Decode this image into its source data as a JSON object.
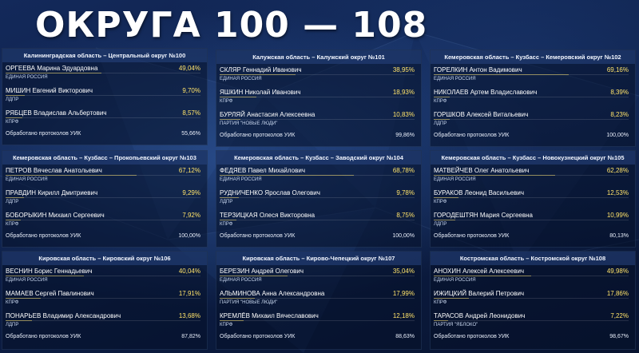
{
  "title": "ОКРУГА 100 — 108",
  "colors": {
    "percent": "#ffe36a",
    "background": "#0b1a3c",
    "header": "#284682"
  },
  "districts": [
    {
      "header": "Калининградская область – Центральный округ №100",
      "candidates": [
        {
          "name": "ОРГЕЕВА Марина Эдуардовна",
          "percent": "49,04%",
          "party": "ЕДИНАЯ РОССИЯ",
          "share": 0.4904
        },
        {
          "name": "МИШИН Евгений Викторович",
          "percent": "9,70%",
          "party": "ЛДПР",
          "share": 0.097
        },
        {
          "name": "РЯБЦЕВ Владислав Альбертович",
          "percent": "8,57%",
          "party": "КПРФ",
          "share": 0.0857
        }
      ],
      "processed_label": "Обработано протоколов УИК",
      "processed_value": "55,66%"
    },
    {
      "header": "Калужская область – Калужский округ №101",
      "candidates": [
        {
          "name": "СКЛЯР Геннадий Иванович",
          "percent": "38,95%",
          "party": "ЕДИНАЯ РОССИЯ",
          "share": 0.3895
        },
        {
          "name": "ЯШКИН Николай Иванович",
          "percent": "18,93%",
          "party": "КПРФ",
          "share": 0.1893
        },
        {
          "name": "БУРЛЯЙ Анастасия Алексеевна",
          "percent": "10,83%",
          "party": "ПАРТИЯ \"НОВЫЕ ЛЮДИ\"",
          "share": 0.1083
        }
      ],
      "processed_label": "Обработано протоколов УИК",
      "processed_value": "99,86%"
    },
    {
      "header": "Кемеровская область – Кузбасс – Кемеровский округ №102",
      "candidates": [
        {
          "name": "ГОРЕЛКИН Антон Вадимович",
          "percent": "69,16%",
          "party": "ЕДИНАЯ РОССИЯ",
          "share": 0.6916
        },
        {
          "name": "НИКОЛАЕВ Артем Владиславович",
          "percent": "8,39%",
          "party": "КПРФ",
          "share": 0.0839
        },
        {
          "name": "ГОРШКОВ Алексей Витальевич",
          "percent": "8,23%",
          "party": "ЛДПР",
          "share": 0.0823
        }
      ],
      "processed_label": "Обработано протоколов УИК",
      "processed_value": "100,00%"
    },
    {
      "header": "Кемеровская область – Кузбасс – Прокопьевский округ №103",
      "candidates": [
        {
          "name": "ПЕТРОВ Вячеслав Анатольевич",
          "percent": "67,12%",
          "party": "ЕДИНАЯ РОССИЯ",
          "share": 0.6712
        },
        {
          "name": "ПРАВДИН Кирилл Дмитриевич",
          "percent": "9,29%",
          "party": "ЛДПР",
          "share": 0.0929
        },
        {
          "name": "БОБОРЫКИН Михаил Сергеевич",
          "percent": "7,92%",
          "party": "КПРФ",
          "share": 0.0792
        }
      ],
      "processed_label": "Обработано протоколов УИК",
      "processed_value": "100,00%"
    },
    {
      "header": "Кемеровская область – Кузбасс – Заводский округ №104",
      "candidates": [
        {
          "name": "ФЕДЯЕВ Павел Михайлович",
          "percent": "68,78%",
          "party": "ЕДИНАЯ РОССИЯ",
          "share": 0.6878
        },
        {
          "name": "РУДНИЧЕНКО Ярослав Олегович",
          "percent": "9,78%",
          "party": "ЛДПР",
          "share": 0.0978
        },
        {
          "name": "ТЕРЗИЦКАЯ Олеся Викторовна",
          "percent": "8,75%",
          "party": "КПРФ",
          "share": 0.0875
        }
      ],
      "processed_label": "Обработано протоколов УИК",
      "processed_value": "100,00%"
    },
    {
      "header": "Кемеровская область – Кузбасс – Новокузнецкий округ №105",
      "candidates": [
        {
          "name": "МАТВЕЙЧЕВ Олег Анатольевич",
          "percent": "62,28%",
          "party": "ЕДИНАЯ РОССИЯ",
          "share": 0.6228
        },
        {
          "name": "БУРАКОВ Леонид Васильевич",
          "percent": "12,53%",
          "party": "КПРФ",
          "share": 0.1253
        },
        {
          "name": "ГОРОДЕШТЯН Мария Сергеевна",
          "percent": "10,99%",
          "party": "ЛДПР",
          "share": 0.1099
        }
      ],
      "processed_label": "Обработано протоколов УИК",
      "processed_value": "80,13%"
    },
    {
      "header": "Кировская область – Кировский округ №106",
      "candidates": [
        {
          "name": "ВЕСНИН Борис Геннадьевич",
          "percent": "40,04%",
          "party": "ЕДИНАЯ РОССИЯ",
          "share": 0.4004
        },
        {
          "name": "МАМАЕВ Сергей Павлинович",
          "percent": "17,91%",
          "party": "КПРФ",
          "share": 0.1791
        },
        {
          "name": "ПОНАРЬЕВ Владимир Александрович",
          "percent": "13,68%",
          "party": "ЛДПР",
          "share": 0.1368
        }
      ],
      "processed_label": "Обработано протоколов УИК",
      "processed_value": "87,82%"
    },
    {
      "header": "Кировская область – Кирово-Чепецкий округ №107",
      "candidates": [
        {
          "name": "БЕРЕЗИН Андрей Олегович",
          "percent": "35,04%",
          "party": "ЕДИНАЯ РОССИЯ",
          "share": 0.3504
        },
        {
          "name": "АЛЬМИНОВА Анна Александровна",
          "percent": "17,99%",
          "party": "ПАРТИЯ \"НОВЫЕ ЛЮДИ\"",
          "share": 0.1799
        },
        {
          "name": "КРЕМЛЁВ Михаил Вячеславович",
          "percent": "12,18%",
          "party": "КПРФ",
          "share": 0.1218
        }
      ],
      "processed_label": "Обработано протоколов УИК",
      "processed_value": "88,63%"
    },
    {
      "header": "Костромская область – Костромской округ №108",
      "candidates": [
        {
          "name": "АНОХИН Алексей Алексеевич",
          "percent": "49,98%",
          "party": "ЕДИНАЯ РОССИЯ",
          "share": 0.4998
        },
        {
          "name": "ИЖИЦКИЙ Валерий Петрович",
          "percent": "17,86%",
          "party": "КПРФ",
          "share": 0.1786
        },
        {
          "name": "ТАРАСОВ Андрей Леонидович",
          "percent": "7,22%",
          "party": "ПАРТИЯ \"ЯБЛОКО\"",
          "share": 0.0722
        }
      ],
      "processed_label": "Обработано протоколов УИК",
      "processed_value": "98,67%"
    }
  ]
}
